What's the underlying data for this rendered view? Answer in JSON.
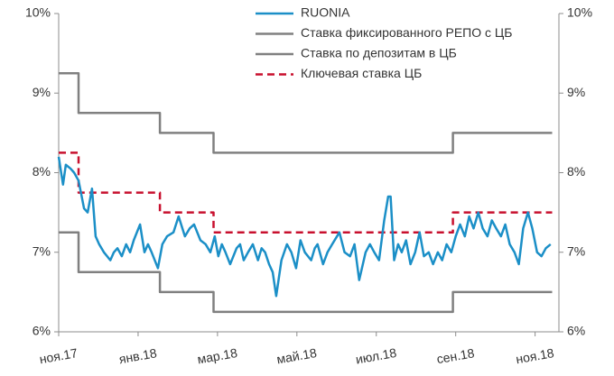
{
  "chart_data": {
    "type": "line",
    "xlim": [
      0,
      12.6
    ],
    "xticks": [
      {
        "value": 0,
        "label": "ноя.17"
      },
      {
        "value": 2,
        "label": "янв.18"
      },
      {
        "value": 4,
        "label": "мар.18"
      },
      {
        "value": 6,
        "label": "май.18"
      },
      {
        "value": 8,
        "label": "июл.18"
      },
      {
        "value": 10,
        "label": "сен.18"
      },
      {
        "value": 12,
        "label": "ноя.18"
      }
    ],
    "ylim": [
      6,
      10
    ],
    "yticks": [
      {
        "value": 6,
        "label": "6%"
      },
      {
        "value": 7,
        "label": "7%"
      },
      {
        "value": 8,
        "label": "8%"
      },
      {
        "value": 9,
        "label": "9%"
      },
      {
        "value": 10,
        "label": "10%"
      }
    ],
    "y2lim": [
      6,
      10
    ],
    "y2ticks": [
      {
        "value": 6,
        "label": "6%"
      },
      {
        "value": 7,
        "label": "7%"
      },
      {
        "value": 8,
        "label": "8%"
      },
      {
        "value": 9,
        "label": "9%"
      },
      {
        "value": 10,
        "label": "10%"
      }
    ],
    "grid": false,
    "legend": "top",
    "series": [
      {
        "name": "RUONIA",
        "color": "#1b8fc7",
        "line_style": "solid",
        "x": [
          0,
          0.11,
          0.18,
          0.3,
          0.39,
          0.5,
          0.64,
          0.73,
          0.84,
          0.93,
          1.02,
          1.14,
          1.3,
          1.39,
          1.48,
          1.59,
          1.7,
          1.8,
          1.89,
          2.05,
          2.16,
          2.25,
          2.34,
          2.5,
          2.61,
          2.73,
          2.89,
          3.02,
          3.18,
          3.3,
          3.41,
          3.57,
          3.7,
          3.82,
          3.93,
          4.02,
          4.11,
          4.2,
          4.32,
          4.48,
          4.57,
          4.66,
          4.77,
          4.89,
          5.02,
          5.11,
          5.2,
          5.3,
          5.39,
          5.48,
          5.61,
          5.75,
          5.86,
          5.98,
          6.09,
          6.2,
          6.36,
          6.45,
          6.52,
          6.66,
          6.77,
          6.89,
          7.07,
          7.2,
          7.34,
          7.45,
          7.57,
          7.73,
          7.84,
          7.95,
          8.07,
          8.2,
          8.3,
          8.36,
          8.45,
          8.55,
          8.64,
          8.75,
          8.86,
          8.98,
          9.09,
          9.2,
          9.32,
          9.43,
          9.55,
          9.66,
          9.77,
          9.89,
          10,
          10.11,
          10.23,
          10.34,
          10.45,
          10.57,
          10.68,
          10.8,
          10.91,
          11.02,
          11.14,
          11.25,
          11.36,
          11.48,
          11.59,
          11.7,
          11.82,
          11.93,
          12.05,
          12.16,
          12.27,
          12.39
        ],
        "values": [
          8.2,
          7.85,
          8.1,
          8.05,
          8.0,
          7.9,
          7.55,
          7.5,
          7.8,
          7.2,
          7.1,
          7.0,
          6.9,
          7.0,
          7.05,
          6.95,
          7.1,
          7.0,
          7.15,
          7.35,
          7.0,
          7.1,
          7.0,
          6.8,
          7.1,
          7.2,
          7.25,
          7.45,
          7.2,
          7.3,
          7.35,
          7.15,
          7.1,
          7.0,
          7.2,
          6.95,
          7.1,
          7.0,
          6.85,
          7.05,
          7.1,
          6.9,
          7.0,
          7.1,
          6.9,
          7.05,
          7.0,
          6.85,
          6.75,
          6.45,
          6.9,
          7.1,
          7.0,
          6.8,
          7.15,
          7.0,
          6.9,
          7.05,
          7.1,
          6.85,
          7.0,
          7.1,
          7.25,
          7.0,
          6.95,
          7.1,
          6.65,
          7.0,
          7.1,
          7.0,
          6.9,
          7.4,
          7.7,
          7.7,
          6.9,
          7.1,
          7.0,
          7.15,
          6.85,
          7.0,
          7.25,
          6.95,
          7.0,
          6.85,
          7.0,
          6.9,
          7.1,
          7.0,
          7.2,
          7.35,
          7.2,
          7.45,
          7.3,
          7.5,
          7.3,
          7.2,
          7.4,
          7.3,
          7.2,
          7.35,
          7.1,
          7.0,
          6.85,
          7.3,
          7.5,
          7.3,
          7.0,
          6.95,
          7.05,
          7.1
        ]
      },
      {
        "name": "Ставка фиксированного РЕПО с ЦБ",
        "color": "#808080",
        "line_style": "solid",
        "x": [
          0,
          0.5,
          0.5,
          2.55,
          2.55,
          3.9,
          3.9,
          9.93,
          9.93,
          12.43
        ],
        "values": [
          9.25,
          9.25,
          8.75,
          8.75,
          8.5,
          8.5,
          8.25,
          8.25,
          8.5,
          8.5
        ]
      },
      {
        "name": "Ставка по депозитам в ЦБ",
        "color": "#808080",
        "line_style": "solid",
        "x": [
          0,
          0.5,
          0.5,
          2.55,
          2.55,
          3.9,
          3.9,
          9.93,
          9.93,
          12.43
        ],
        "values": [
          7.25,
          7.25,
          6.75,
          6.75,
          6.5,
          6.5,
          6.25,
          6.25,
          6.5,
          6.5
        ]
      },
      {
        "name": "Ключевая ставка ЦБ",
        "color": "#c8102e",
        "line_style": "dashed",
        "x": [
          0,
          0.5,
          0.5,
          2.55,
          2.55,
          3.9,
          3.9,
          9.93,
          9.93,
          12.43
        ],
        "values": [
          8.25,
          8.25,
          7.75,
          7.75,
          7.5,
          7.5,
          7.25,
          7.25,
          7.5,
          7.5
        ]
      }
    ]
  }
}
